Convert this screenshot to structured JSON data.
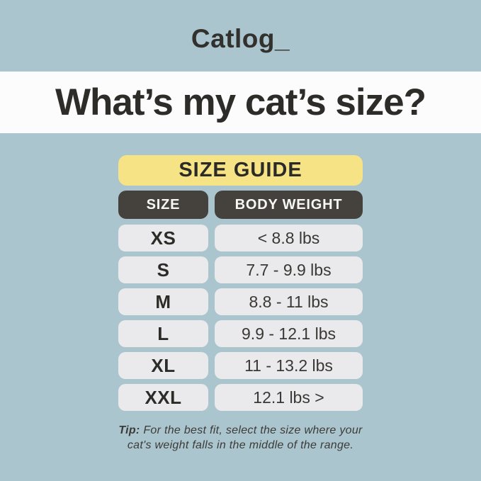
{
  "logo": "Catlog_",
  "title": "What’s my cat’s size?",
  "size_guide": {
    "banner_label": "SIZE GUIDE",
    "columns": [
      "SIZE",
      "BODY WEIGHT"
    ],
    "rows": [
      {
        "size": "XS",
        "weight": "< 8.8 lbs"
      },
      {
        "size": "S",
        "weight": "7.7 - 9.9 lbs"
      },
      {
        "size": "M",
        "weight": "8.8 - 11 lbs"
      },
      {
        "size": "L",
        "weight": "9.9 - 12.1 lbs"
      },
      {
        "size": "XL",
        "weight": "11 - 13.2 lbs"
      },
      {
        "size": "XXL",
        "weight": "12.1 lbs >"
      }
    ]
  },
  "tip": {
    "label": "Tip:",
    "line1": "For the best fit, select the size where your",
    "line2": "cat's weight falls in the middle of the range."
  },
  "colors": {
    "background_blue": "#abc5cf",
    "band_white": "#fcfcfc",
    "banner_yellow": "#f6e385",
    "header_dark": "#45423e",
    "cell_gray": "#eaeaec",
    "text_dark": "#2e2c29"
  }
}
